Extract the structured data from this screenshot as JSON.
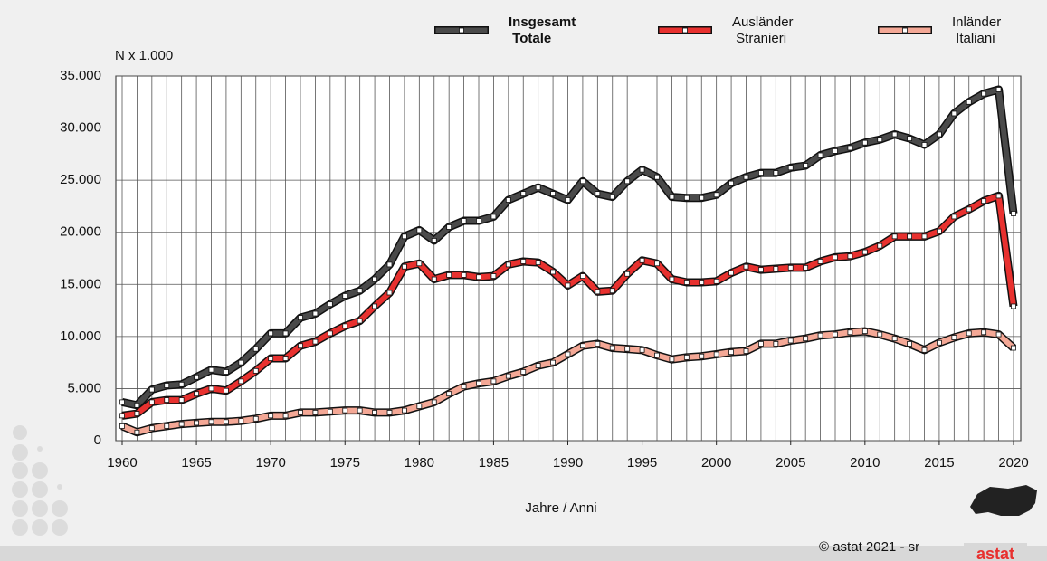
{
  "chart_data": {
    "type": "line",
    "y_label": "N x 1.000",
    "x_label": "Jahre / Anni",
    "footer": "© astat 2021 - sr",
    "logo": "astat",
    "x": [
      1960,
      1961,
      1962,
      1963,
      1964,
      1965,
      1966,
      1967,
      1968,
      1969,
      1970,
      1971,
      1972,
      1973,
      1974,
      1975,
      1976,
      1977,
      1978,
      1979,
      1980,
      1981,
      1982,
      1983,
      1984,
      1985,
      1986,
      1987,
      1988,
      1989,
      1990,
      1991,
      1992,
      1993,
      1994,
      1995,
      1996,
      1997,
      1998,
      1999,
      2000,
      2001,
      2002,
      2003,
      2004,
      2005,
      2006,
      2007,
      2008,
      2009,
      2010,
      2011,
      2012,
      2013,
      2014,
      2015,
      2016,
      2017,
      2018,
      2019,
      2020
    ],
    "series": [
      {
        "name": "Insgesamt Totale",
        "color": "#4a4a4a",
        "bold": true,
        "values": [
          3700,
          3400,
          4900,
          5300,
          5400,
          6100,
          6800,
          6600,
          7500,
          8800,
          10300,
          10300,
          11800,
          12200,
          13100,
          13900,
          14400,
          15500,
          16900,
          19600,
          20200,
          19200,
          20500,
          21100,
          21100,
          21500,
          23100,
          23700,
          24300,
          23700,
          23100,
          24900,
          23700,
          23400,
          24900,
          26000,
          25300,
          23400,
          23300,
          23300,
          23600,
          24700,
          25300,
          25700,
          25700,
          26200,
          26400,
          27400,
          27800,
          28100,
          28600,
          28900,
          29400,
          29000,
          28400,
          29400,
          31400,
          32500,
          33300,
          33700,
          21800
        ]
      },
      {
        "name": "Ausländer Stranieri",
        "color": "#e8312f",
        "bold": false,
        "values": [
          2400,
          2600,
          3700,
          3900,
          3900,
          4500,
          5000,
          4800,
          5700,
          6700,
          7900,
          7900,
          9100,
          9500,
          10300,
          11000,
          11500,
          12900,
          14200,
          16700,
          17000,
          15500,
          15900,
          15900,
          15700,
          15800,
          16900,
          17200,
          17100,
          16200,
          14900,
          15800,
          14300,
          14400,
          16000,
          17300,
          17000,
          15500,
          15200,
          15200,
          15300,
          16100,
          16700,
          16400,
          16500,
          16600,
          16600,
          17200,
          17600,
          17700,
          18100,
          18700,
          19600,
          19600,
          19600,
          20100,
          21500,
          22200,
          23000,
          23500,
          12900
        ]
      },
      {
        "name": "Inländer Italiani",
        "color": "#f4a896",
        "bold": false,
        "values": [
          1400,
          800,
          1200,
          1400,
          1600,
          1700,
          1800,
          1800,
          1900,
          2100,
          2400,
          2400,
          2700,
          2700,
          2800,
          2900,
          2900,
          2700,
          2700,
          2900,
          3300,
          3700,
          4500,
          5200,
          5500,
          5700,
          6200,
          6600,
          7200,
          7500,
          8300,
          9100,
          9300,
          8900,
          8800,
          8700,
          8200,
          7800,
          8000,
          8100,
          8300,
          8500,
          8600,
          9300,
          9300,
          9600,
          9800,
          10100,
          10200,
          10400,
          10500,
          10200,
          9800,
          9300,
          8700,
          9400,
          9900,
          10300,
          10400,
          10200,
          8900
        ]
      }
    ],
    "xlim": [
      1960,
      2020
    ],
    "xticks": [
      1960,
      1965,
      1970,
      1975,
      1980,
      1985,
      1990,
      1995,
      2000,
      2005,
      2010,
      2015,
      2020
    ],
    "ylim": [
      0,
      35000
    ],
    "yticks": [
      0,
      {
        "value": 5000,
        "label": "5.000"
      },
      {
        "value": 10000,
        "label": "10.000"
      },
      {
        "value": 15000,
        "label": "15.000"
      },
      {
        "value": 20000,
        "label": "20.000"
      },
      {
        "value": 25000,
        "label": "25.000"
      },
      {
        "value": 30000,
        "label": "30.000"
      },
      {
        "value": 35000,
        "label": "35.000"
      }
    ],
    "grid": true
  }
}
